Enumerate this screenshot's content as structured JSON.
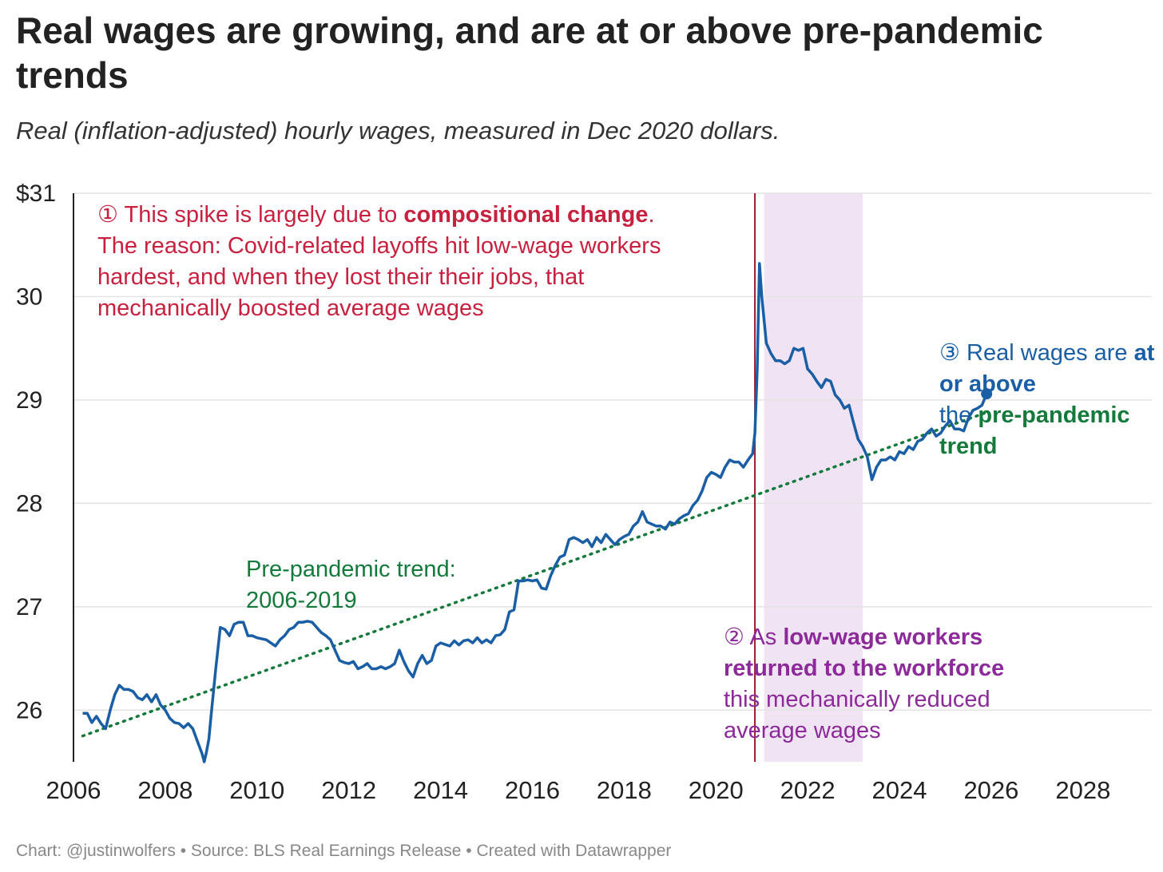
{
  "title": "Real wages are growing, and are at or above pre-pandemic trends",
  "subtitle": "Real (inflation-adjusted) hourly wages, measured in Dec 2020 dollars.",
  "footer": "Chart: @justinwolfers • Source: BLS Real Earnings Release • Created with Datawrapper",
  "colors": {
    "line": "#1a5fa6",
    "trend": "#147a3b",
    "shade": "#f0e4f4",
    "annotation1": "#c8213f",
    "annotation2": "#8b2a98",
    "vline": "#9b1b30"
  },
  "annotations": {
    "a1": {
      "marker": "①",
      "text1": " This spike is largely due to ",
      "bold1": "compositional change",
      "text2": ".",
      "text3": "The reason: Covid-related layoffs hit low-wage workers hardest, and when they lost their their jobs, that mechanically boosted average wages"
    },
    "a2": {
      "marker": "②",
      "text1": " As ",
      "bold1": "low-wage workers returned to the workforce",
      "text2": "this mechanically reduced average wages"
    },
    "a3": {
      "marker": "③",
      "text1": " Real wages are ",
      "bold1": "at or above",
      "text2": "the ",
      "bold2": "pre-pandemic trend"
    },
    "trend_label": "Pre-pandemic trend: 2006-2019"
  },
  "chart_data": {
    "type": "line",
    "xlim": [
      2006,
      2029.5
    ],
    "ylim": [
      25.5,
      31
    ],
    "x_ticks": [
      "2006",
      "2008",
      "2010",
      "2012",
      "2014",
      "2016",
      "2018",
      "2020",
      "2022",
      "2024",
      "2026",
      "2028"
    ],
    "y_ticks": [
      {
        "value": 31,
        "label": "$31"
      },
      {
        "value": 30,
        "label": "30"
      },
      {
        "value": 29,
        "label": "29"
      },
      {
        "value": 28,
        "label": "28"
      },
      {
        "value": 27,
        "label": "27"
      },
      {
        "value": 26,
        "label": "26"
      }
    ],
    "series": [
      {
        "values": [
          [
            2006.2,
            25.97
          ],
          [
            2006.3,
            25.97
          ],
          [
            2006.4,
            25.88
          ],
          [
            2006.5,
            25.94
          ],
          [
            2006.6,
            25.87
          ],
          [
            2006.7,
            25.82
          ],
          [
            2006.8,
            26.0
          ],
          [
            2006.9,
            26.15
          ],
          [
            2007.0,
            26.24
          ],
          [
            2007.1,
            26.2
          ],
          [
            2007.2,
            26.2
          ],
          [
            2007.3,
            26.18
          ],
          [
            2007.4,
            26.12
          ],
          [
            2007.5,
            26.1
          ],
          [
            2007.6,
            26.15
          ],
          [
            2007.7,
            26.08
          ],
          [
            2007.8,
            26.15
          ],
          [
            2007.9,
            26.05
          ],
          [
            2008.0,
            26.0
          ],
          [
            2008.1,
            25.92
          ],
          [
            2008.2,
            25.88
          ],
          [
            2008.3,
            25.87
          ],
          [
            2008.4,
            25.83
          ],
          [
            2008.5,
            25.87
          ],
          [
            2008.6,
            25.82
          ],
          [
            2008.7,
            25.7
          ],
          [
            2008.8,
            25.58
          ],
          [
            2008.85,
            25.5
          ],
          [
            2008.9,
            25.6
          ],
          [
            2008.95,
            25.72
          ],
          [
            2009.0,
            25.95
          ],
          [
            2009.1,
            26.4
          ],
          [
            2009.2,
            26.8
          ],
          [
            2009.3,
            26.78
          ],
          [
            2009.4,
            26.72
          ],
          [
            2009.5,
            26.83
          ],
          [
            2009.6,
            26.85
          ],
          [
            2009.7,
            26.85
          ],
          [
            2009.8,
            26.72
          ],
          [
            2009.9,
            26.72
          ],
          [
            2010.0,
            26.7
          ],
          [
            2010.2,
            26.68
          ],
          [
            2010.4,
            26.62
          ],
          [
            2010.5,
            26.68
          ],
          [
            2010.6,
            26.72
          ],
          [
            2010.7,
            26.78
          ],
          [
            2010.8,
            26.8
          ],
          [
            2010.9,
            26.85
          ],
          [
            2011.0,
            26.85
          ],
          [
            2011.1,
            26.86
          ],
          [
            2011.2,
            26.85
          ],
          [
            2011.3,
            26.8
          ],
          [
            2011.4,
            26.75
          ],
          [
            2011.5,
            26.72
          ],
          [
            2011.6,
            26.68
          ],
          [
            2011.7,
            26.58
          ],
          [
            2011.8,
            26.48
          ],
          [
            2011.9,
            26.46
          ],
          [
            2012.0,
            26.45
          ],
          [
            2012.1,
            26.47
          ],
          [
            2012.2,
            26.4
          ],
          [
            2012.3,
            26.42
          ],
          [
            2012.4,
            26.45
          ],
          [
            2012.5,
            26.4
          ],
          [
            2012.6,
            26.4
          ],
          [
            2012.7,
            26.42
          ],
          [
            2012.8,
            26.4
          ],
          [
            2012.9,
            26.42
          ],
          [
            2013.0,
            26.45
          ],
          [
            2013.1,
            26.58
          ],
          [
            2013.2,
            26.47
          ],
          [
            2013.3,
            26.38
          ],
          [
            2013.4,
            26.32
          ],
          [
            2013.5,
            26.45
          ],
          [
            2013.6,
            26.53
          ],
          [
            2013.7,
            26.45
          ],
          [
            2013.8,
            26.48
          ],
          [
            2013.9,
            26.62
          ],
          [
            2014.0,
            26.65
          ],
          [
            2014.2,
            26.62
          ],
          [
            2014.3,
            26.67
          ],
          [
            2014.4,
            26.63
          ],
          [
            2014.5,
            26.67
          ],
          [
            2014.6,
            26.68
          ],
          [
            2014.7,
            26.65
          ],
          [
            2014.8,
            26.7
          ],
          [
            2014.9,
            26.65
          ],
          [
            2015.0,
            26.68
          ],
          [
            2015.1,
            26.65
          ],
          [
            2015.2,
            26.72
          ],
          [
            2015.3,
            26.73
          ],
          [
            2015.4,
            26.78
          ],
          [
            2015.5,
            26.95
          ],
          [
            2015.6,
            26.97
          ],
          [
            2015.7,
            27.25
          ],
          [
            2015.8,
            27.25
          ],
          [
            2015.9,
            27.26
          ],
          [
            2016.0,
            27.25
          ],
          [
            2016.1,
            27.26
          ],
          [
            2016.2,
            27.18
          ],
          [
            2016.3,
            27.17
          ],
          [
            2016.4,
            27.3
          ],
          [
            2016.5,
            27.4
          ],
          [
            2016.6,
            27.48
          ],
          [
            2016.7,
            27.5
          ],
          [
            2016.8,
            27.65
          ],
          [
            2016.9,
            27.67
          ],
          [
            2017.0,
            27.65
          ],
          [
            2017.1,
            27.62
          ],
          [
            2017.2,
            27.65
          ],
          [
            2017.3,
            27.58
          ],
          [
            2017.4,
            27.67
          ],
          [
            2017.5,
            27.62
          ],
          [
            2017.6,
            27.7
          ],
          [
            2017.7,
            27.65
          ],
          [
            2017.8,
            27.6
          ],
          [
            2017.9,
            27.65
          ],
          [
            2018.0,
            27.68
          ],
          [
            2018.1,
            27.7
          ],
          [
            2018.2,
            27.78
          ],
          [
            2018.3,
            27.82
          ],
          [
            2018.4,
            27.92
          ],
          [
            2018.5,
            27.82
          ],
          [
            2018.6,
            27.8
          ],
          [
            2018.7,
            27.78
          ],
          [
            2018.8,
            27.78
          ],
          [
            2018.9,
            27.75
          ],
          [
            2019.0,
            27.82
          ],
          [
            2019.1,
            27.8
          ],
          [
            2019.2,
            27.85
          ],
          [
            2019.3,
            27.88
          ],
          [
            2019.4,
            27.9
          ],
          [
            2019.5,
            27.98
          ],
          [
            2019.6,
            28.03
          ],
          [
            2019.7,
            28.12
          ],
          [
            2019.8,
            28.25
          ],
          [
            2019.9,
            28.3
          ],
          [
            2020.0,
            28.28
          ],
          [
            2020.1,
            28.25
          ],
          [
            2020.2,
            28.35
          ],
          [
            2020.3,
            28.42
          ],
          [
            2020.4,
            28.4
          ],
          [
            2020.5,
            28.4
          ],
          [
            2020.6,
            28.35
          ],
          [
            2020.7,
            28.42
          ],
          [
            2020.8,
            28.48
          ],
          [
            2020.85,
            28.68
          ],
          [
            2020.9,
            29.3
          ],
          [
            2020.95,
            30.32
          ],
          [
            2021.0,
            30.0
          ],
          [
            2021.1,
            29.55
          ],
          [
            2021.2,
            29.45
          ],
          [
            2021.3,
            29.38
          ],
          [
            2021.4,
            29.38
          ],
          [
            2021.5,
            29.35
          ],
          [
            2021.6,
            29.38
          ],
          [
            2021.7,
            29.5
          ],
          [
            2021.8,
            29.48
          ],
          [
            2021.9,
            29.5
          ],
          [
            2022.0,
            29.3
          ],
          [
            2022.1,
            29.25
          ],
          [
            2022.2,
            29.18
          ],
          [
            2022.3,
            29.12
          ],
          [
            2022.4,
            29.2
          ],
          [
            2022.5,
            29.18
          ],
          [
            2022.6,
            29.05
          ],
          [
            2022.7,
            29.0
          ],
          [
            2022.8,
            28.92
          ],
          [
            2022.9,
            28.95
          ],
          [
            2023.0,
            28.78
          ],
          [
            2023.1,
            28.62
          ],
          [
            2023.2,
            28.55
          ],
          [
            2023.3,
            28.45
          ],
          [
            2023.4,
            28.23
          ],
          [
            2023.5,
            28.35
          ],
          [
            2023.6,
            28.42
          ],
          [
            2023.7,
            28.42
          ],
          [
            2023.8,
            28.45
          ],
          [
            2023.9,
            28.42
          ],
          [
            2024.0,
            28.5
          ],
          [
            2024.1,
            28.48
          ],
          [
            2024.2,
            28.55
          ],
          [
            2024.3,
            28.52
          ],
          [
            2024.4,
            28.6
          ],
          [
            2024.5,
            28.62
          ],
          [
            2024.6,
            28.68
          ],
          [
            2024.7,
            28.72
          ],
          [
            2024.8,
            28.65
          ],
          [
            2024.9,
            28.68
          ],
          [
            2025.0,
            28.75
          ],
          [
            2025.1,
            28.8
          ],
          [
            2025.2,
            28.72
          ],
          [
            2025.3,
            28.72
          ],
          [
            2025.4,
            28.7
          ],
          [
            2025.5,
            28.82
          ],
          [
            2025.6,
            28.9
          ],
          [
            2025.7,
            28.92
          ],
          [
            2025.8,
            28.95
          ],
          [
            2025.9,
            29.06
          ]
        ]
      }
    ],
    "trend": {
      "x": [
        2006.2,
        2025.9
      ],
      "y": [
        25.75,
        28.88
      ]
    },
    "shade": {
      "x": [
        2021.05,
        2023.2
      ]
    },
    "vline": {
      "x": 2020.85
    }
  }
}
